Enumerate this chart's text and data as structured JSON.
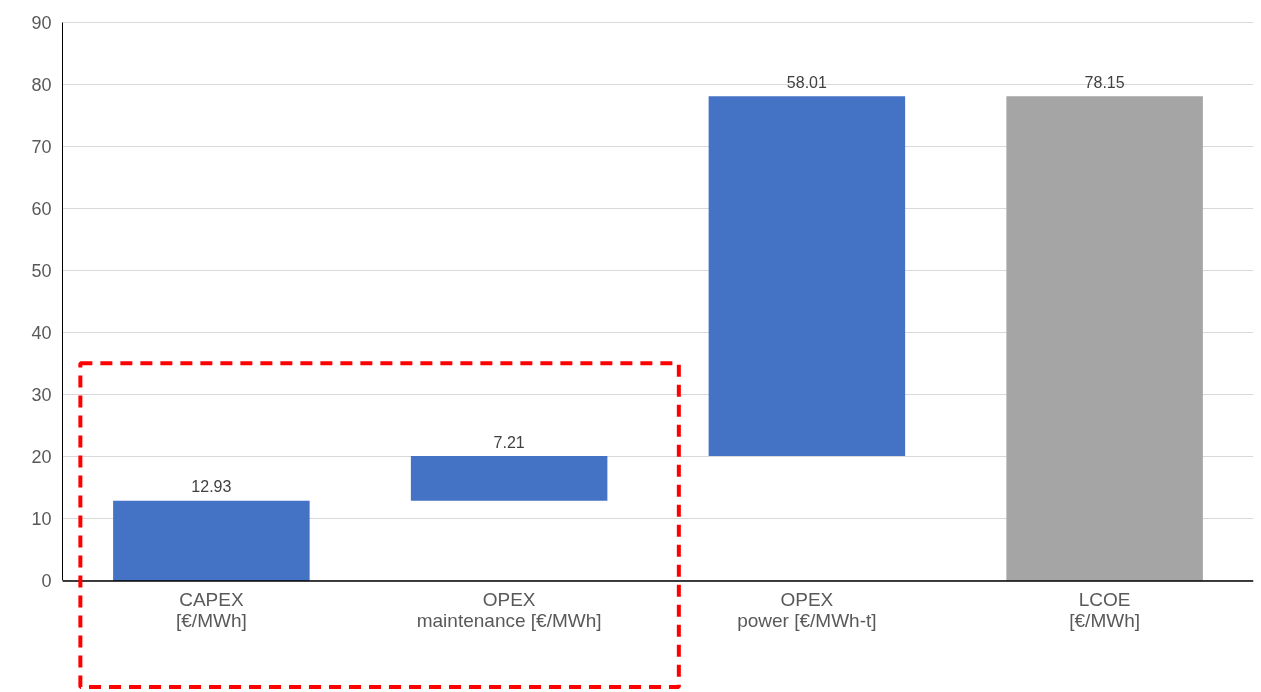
{
  "chart_data": {
    "type": "bar",
    "categories": [
      "CAPEX\n[€/MWh]",
      "OPEX\nmaintenance [€/MWh]",
      "OPEX\npower [€/MWh-t]",
      "LCOE\n[€/MWh]"
    ],
    "values": [
      12.93,
      7.21,
      58.01,
      78.15
    ],
    "base": [
      0,
      12.93,
      20.14,
      0
    ],
    "colors": [
      "#4472c4",
      "#4472c4",
      "#4472c4",
      "#a5a5a5"
    ],
    "ylim": [
      0,
      90
    ],
    "yticks": [
      0,
      10,
      20,
      30,
      40,
      50,
      60,
      70,
      80,
      90
    ],
    "grid": "y",
    "data_labels": true
  }
}
